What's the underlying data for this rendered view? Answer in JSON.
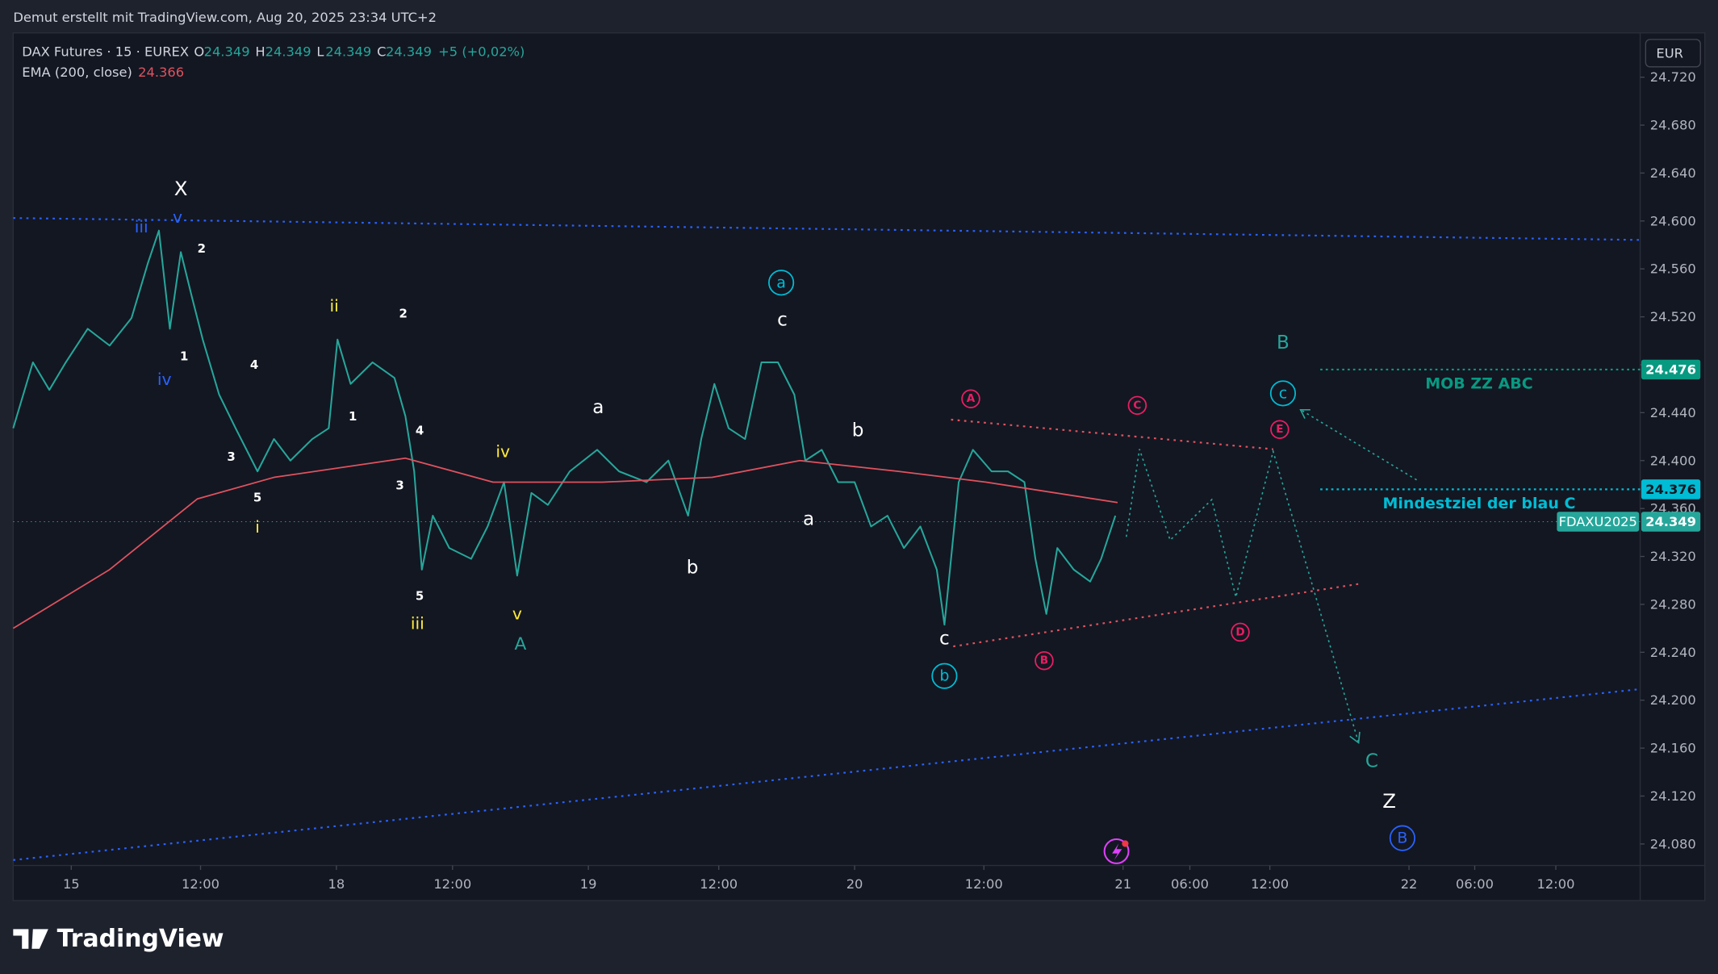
{
  "header": {
    "credit": "Demut erstellt mit TradingView.com, Aug 20, 2025 23:34 UTC+2",
    "currency": "EUR",
    "logo": "TradingView"
  },
  "chart_data": {
    "type": "line",
    "title": "DAX Futures · 15 · EUREX",
    "ohlc": [
      {
        "name": "O",
        "value": 24349,
        "label": "24.349"
      },
      {
        "name": "H",
        "value": 24349,
        "label": "24.349"
      },
      {
        "name": "L",
        "value": 24349,
        "label": "24.349"
      },
      {
        "name": "C",
        "value": 24349,
        "label": "24.349"
      }
    ],
    "change": "+5 (+0,02%)",
    "xlim": [
      0,
      1485
    ],
    "xticks": [
      {
        "value": 53,
        "label": "15"
      },
      {
        "value": 171,
        "label": "12:00"
      },
      {
        "value": 295,
        "label": "18"
      },
      {
        "value": 401,
        "label": "12:00"
      },
      {
        "value": 525,
        "label": "19"
      },
      {
        "value": 644,
        "label": "12:00"
      },
      {
        "value": 768,
        "label": "20"
      },
      {
        "value": 886,
        "label": "12:00"
      },
      {
        "value": 1013,
        "label": "21"
      },
      {
        "value": 1074,
        "label": "06:00"
      },
      {
        "value": 1147,
        "label": "12:00"
      },
      {
        "value": 1274,
        "label": "22"
      },
      {
        "value": 1334,
        "label": "06:00"
      },
      {
        "value": 1408,
        "label": "12:00"
      }
    ],
    "ylim": [
      24062,
      24757
    ],
    "yticks": [
      {
        "value": 24080,
        "label": "24.080"
      },
      {
        "value": 24120,
        "label": "24.120"
      },
      {
        "value": 24160,
        "label": "24.160"
      },
      {
        "value": 24200,
        "label": "24.200"
      },
      {
        "value": 24240,
        "label": "24.240"
      },
      {
        "value": 24280,
        "label": "24.280"
      },
      {
        "value": 24320,
        "label": "24.320"
      },
      {
        "value": 24360,
        "label": "24.360"
      },
      {
        "value": 24400,
        "label": "24.400"
      },
      {
        "value": 24440,
        "label": "24.440"
      },
      {
        "value": 24480,
        "label": "24.480"
      },
      {
        "value": 24520,
        "label": "24.520"
      },
      {
        "value": 24560,
        "label": "24.560"
      },
      {
        "value": 24600,
        "label": "24.600"
      },
      {
        "value": 24640,
        "label": "24.640"
      },
      {
        "value": 24680,
        "label": "24.680"
      },
      {
        "value": 24720,
        "label": "24.720"
      }
    ],
    "series": [
      {
        "name": "FDAXU2025",
        "color": "#26a69a",
        "last": {
          "value": 24349,
          "label": "24.349"
        },
        "x": [
          0,
          18,
          33,
          48,
          68,
          88,
          108,
          123,
          133,
          143,
          153,
          163,
          173,
          188,
          203,
          223,
          238,
          253,
          273,
          288,
          296,
          308,
          328,
          348,
          358,
          366,
          373,
          383,
          398,
          418,
          433,
          448,
          460,
          473,
          488,
          508,
          533,
          553,
          578,
          598,
          616,
          628,
          640,
          653,
          668,
          683,
          698,
          713,
          723,
          738,
          753,
          768,
          783,
          798,
          813,
          828,
          843,
          850,
          863,
          876,
          893,
          908,
          923,
          933,
          943,
          953,
          968,
          983,
          993,
          1006
        ],
        "values": [
          24427,
          24482,
          24459,
          24482,
          24510,
          24496,
          24519,
          24565,
          24592,
          24510,
          24574,
          24537,
          24501,
          24455,
          24427,
          24391,
          24418,
          24400,
          24418,
          24427,
          24501,
          24464,
          24482,
          24469,
          24437,
          24391,
          24309,
          24354,
          24327,
          24318,
          24345,
          24382,
          24304,
          24373,
          24363,
          24391,
          24409,
          24391,
          24382,
          24400,
          24354,
          24418,
          24464,
          24427,
          24418,
          24482,
          24482,
          24455,
          24400,
          24409,
          24382,
          24382,
          24345,
          24354,
          24327,
          24345,
          24309,
          24263,
          24382,
          24409,
          24391,
          24391,
          24382,
          24318,
          24272,
          24327,
          24309,
          24299,
          24318,
          24354
        ]
      },
      {
        "name": "EMA (200, close)",
        "color": "#e0525e",
        "last": {
          "value": 24366,
          "label": "24.366"
        },
        "x": [
          0,
          88,
          168,
          238,
          358,
          438,
          538,
          638,
          718,
          808,
          888,
          1008
        ],
        "values": [
          24260,
          24309,
          24368,
          24386,
          24402,
          24382,
          24382,
          24386,
          24400,
          24391,
          24382,
          24365
        ]
      }
    ],
    "levels": [
      {
        "value": 24476,
        "label": "24.476",
        "text": "MOB ZZ ABC",
        "color": "#089981"
      },
      {
        "value": 24376,
        "label": "24.376",
        "text": "Mindestziel der blau C",
        "color": "#00bcd4"
      }
    ],
    "annotations": [
      {
        "text": "X",
        "color": "#ffffff"
      },
      {
        "text": "v",
        "color": "#2962ff"
      },
      {
        "text": "iii",
        "color": "#2962ff"
      },
      {
        "text": "2",
        "color": "#ffffff"
      },
      {
        "text": "1",
        "color": "#ffffff"
      },
      {
        "text": "iv",
        "color": "#2962ff"
      },
      {
        "text": "ii",
        "color": "#ffeb3b"
      },
      {
        "text": "2",
        "color": "#ffffff"
      },
      {
        "text": "4",
        "color": "#ffffff"
      },
      {
        "text": "1",
        "color": "#ffffff"
      },
      {
        "text": "4",
        "color": "#ffffff"
      },
      {
        "text": "3",
        "color": "#ffffff"
      },
      {
        "text": "3",
        "color": "#ffffff"
      },
      {
        "text": "5",
        "color": "#ffffff"
      },
      {
        "text": "i",
        "color": "#ffeb3b"
      },
      {
        "text": "iv",
        "color": "#ffeb3b"
      },
      {
        "text": "5",
        "color": "#ffffff"
      },
      {
        "text": "iii",
        "color": "#ffeb3b"
      },
      {
        "text": "v",
        "color": "#ffeb3b"
      },
      {
        "text": "A",
        "color": "#26a69a"
      },
      {
        "text": "a",
        "color": "#ffffff"
      },
      {
        "text": "c",
        "color": "#ffffff"
      },
      {
        "text": "a",
        "color": "#00bcd4",
        "circled": true
      },
      {
        "text": "b",
        "color": "#ffffff"
      },
      {
        "text": "a",
        "color": "#ffffff"
      },
      {
        "text": "b",
        "color": "#ffffff"
      },
      {
        "text": "c",
        "color": "#ffffff"
      },
      {
        "text": "b",
        "color": "#00bcd4",
        "circled": true
      },
      {
        "text": "A",
        "color": "#e91e63",
        "circled": true
      },
      {
        "text": "B",
        "color": "#e91e63",
        "circled": true
      },
      {
        "text": "C",
        "color": "#e91e63",
        "circled": true
      },
      {
        "text": "D",
        "color": "#e91e63",
        "circled": true
      },
      {
        "text": "E",
        "color": "#e91e63",
        "circled": true
      },
      {
        "text": "B",
        "color": "#26a69a"
      },
      {
        "text": "c",
        "color": "#00bcd4",
        "circled": true
      },
      {
        "text": "C",
        "color": "#26a69a"
      },
      {
        "text": "Z",
        "color": "#ffffff"
      },
      {
        "text": "B",
        "color": "#2962ff",
        "circled": true
      }
    ]
  }
}
